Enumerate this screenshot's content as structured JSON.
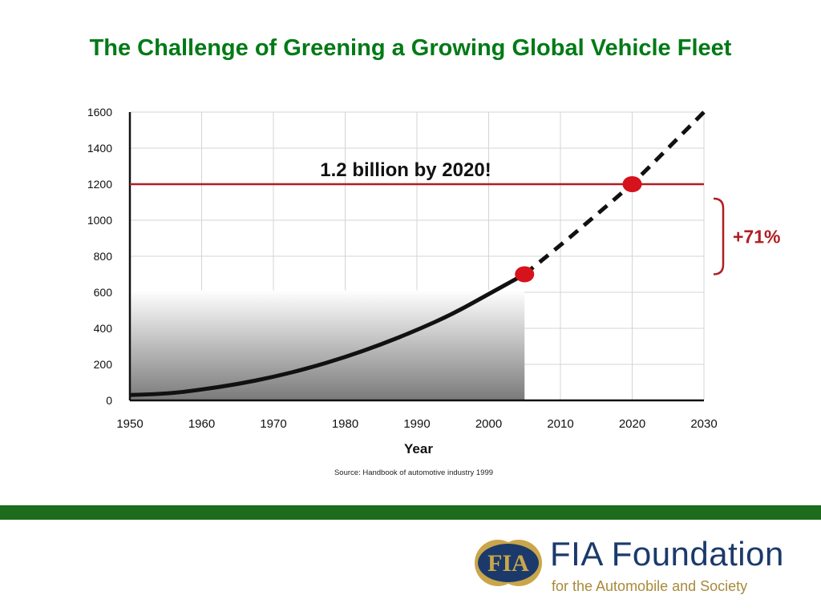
{
  "slide": {
    "title": "The Challenge of Greening a Growing Global Vehicle Fleet",
    "colors": {
      "title": "#007a16",
      "footer_bar": "#1d6b1d"
    }
  },
  "chart_data": {
    "type": "line",
    "title": "",
    "xlabel": "Year",
    "ylabel": "",
    "xlim": [
      1950,
      2030
    ],
    "ylim": [
      0,
      1600
    ],
    "x_ticks": [
      "1950",
      "1960",
      "1970",
      "1980",
      "1990",
      "2000",
      "2010",
      "2020",
      "2030"
    ],
    "y_ticks": [
      "0",
      "200",
      "400",
      "600",
      "800",
      "1000",
      "1200",
      "1400",
      "1600"
    ],
    "grid": true,
    "series": [
      {
        "style": "solid",
        "area_fill": true,
        "x": [
          1950,
          1955,
          1960,
          1965,
          1970,
          1975,
          1980,
          1985,
          1990,
          1995,
          2000,
          2005
        ],
        "y": [
          30,
          35,
          60,
          90,
          130,
          180,
          240,
          310,
          390,
          480,
          590,
          700
        ]
      },
      {
        "style": "dashed",
        "x": [
          2005,
          2010,
          2015,
          2020,
          2025,
          2030
        ],
        "y": [
          700,
          860,
          1030,
          1200,
          1400,
          1600
        ]
      }
    ],
    "points": [
      {
        "x": 2005,
        "y": 700
      },
      {
        "x": 2020,
        "y": 1200
      }
    ],
    "reference_line": {
      "y": 1200,
      "label": "1.2 billion by 2020!"
    },
    "bracket": {
      "from": 700,
      "to": 1200,
      "label": "+71%"
    },
    "source": "Source: Handbook of automotive industry 1999",
    "colors": {
      "curve": "#111111",
      "marker": "#d6121c",
      "reference": "#b01e23",
      "grid": "#d4d4d4"
    }
  },
  "logo": {
    "badge_text": "FIA",
    "name": "FIA Foundation",
    "tagline": "for the Automobile and Society"
  }
}
